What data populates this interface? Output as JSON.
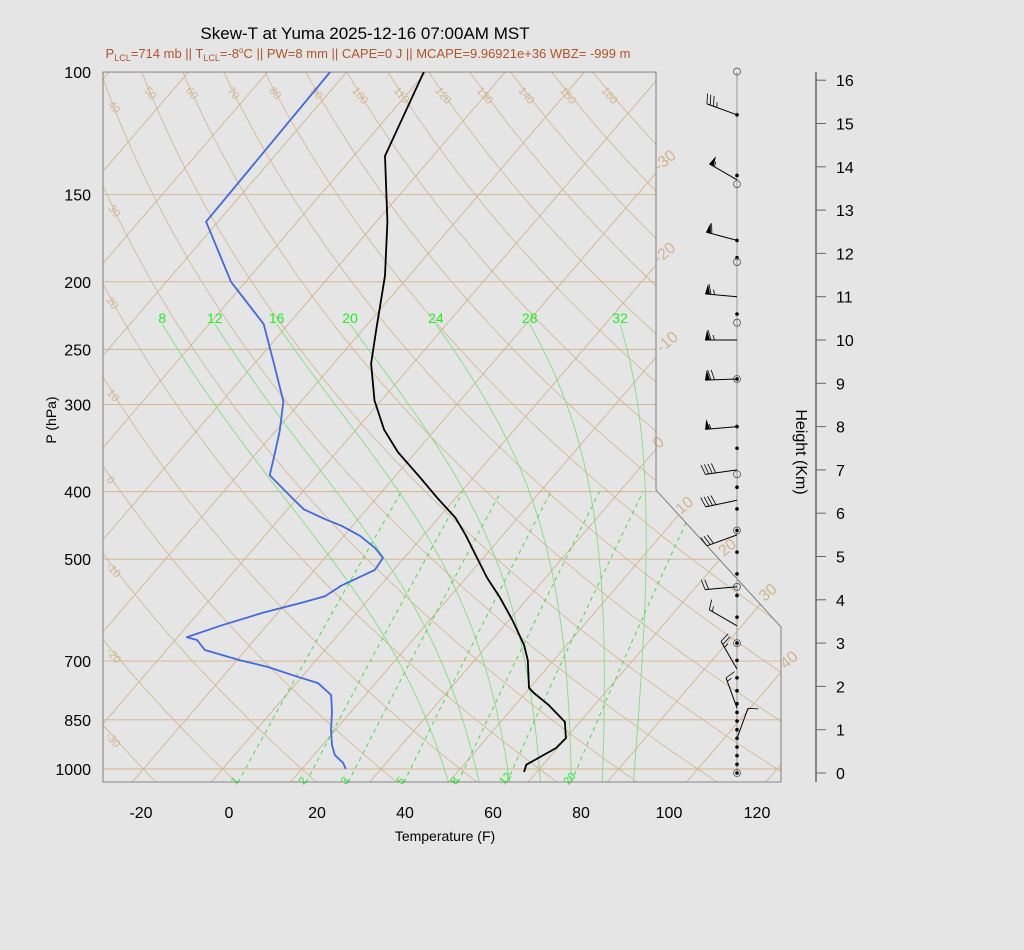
{
  "title": "Skew-T at Yuma 2025-12-16 07:00AM MST",
  "subtitle": {
    "p_lcl_label": "P",
    "p_lcl_sub": "LCL",
    "p_lcl_value": "=714 mb || T",
    "t_lcl_sub": "LCL",
    "t_lcl_value": "=-8",
    "degree": "o",
    "rest": "C || PW=8 mm || CAPE=0 J || MCAPE=9.96921e+36 WBZ= -999 m"
  },
  "colors": {
    "title": "#000000",
    "subtitle": "#b0552a",
    "temperature": "#000000",
    "dewpoint": "#4169e1",
    "isotherm": "#d2b48c",
    "dry_adiabat": "#d2b48c",
    "moist_adiabat": "#7ee07e",
    "mixing_ratio": "#33dd33",
    "green_label": "#22ee22",
    "background": "#e5e5e5"
  },
  "chart_data": {
    "type": "line",
    "subtype": "skew-t log-p",
    "xlabel": "Temperature (F)",
    "ylabel": "P (hPa)",
    "y2label": "Height (Km)",
    "y_scale": "log",
    "ylim": [
      1043,
      100
    ],
    "xlim_at_bottom": [
      -28,
      125
    ],
    "x_ticks": [
      "-20",
      "0",
      "20",
      "40",
      "60",
      "80",
      "100",
      "120"
    ],
    "x_tick_values": [
      -20,
      0,
      20,
      40,
      60,
      80,
      100,
      120
    ],
    "y_ticks": [
      "100",
      "150",
      "200",
      "250",
      "300",
      "400",
      "500",
      "700",
      "850",
      "1000"
    ],
    "y_tick_values": [
      100,
      150,
      200,
      250,
      300,
      400,
      500,
      700,
      850,
      1000
    ],
    "height_ticks": [
      "0",
      "1",
      "2",
      "3",
      "4",
      "5",
      "6",
      "7",
      "8",
      "9",
      "10",
      "11",
      "12",
      "13",
      "14",
      "15",
      "16"
    ],
    "series": [
      {
        "key": "temperature",
        "p": [
          1010,
          986,
          961,
          933,
          903,
          856,
          809,
          778,
          765,
          698,
          664,
          611,
          568,
          532,
          498,
          462,
          436,
          409,
          382,
          351,
          326,
          296,
          262,
          234,
          196,
          164,
          132,
          100
        ],
        "t_f": [
          65.1,
          64.2,
          65.8,
          67.7,
          68.0,
          64.6,
          57.5,
          51.9,
          49.8,
          44.1,
          40.3,
          32.7,
          25.6,
          18.8,
          12.6,
          5.6,
          -0.2,
          -8.0,
          -16.0,
          -26.1,
          -33.6,
          -41.5,
          -49.5,
          -55.0,
          -63.5,
          -73.5,
          -86.9,
          -94.5
        ]
      },
      {
        "key": "dewpoint",
        "p": [
          1000,
          980,
          955,
          924,
          879,
          828,
          783,
          753,
          736,
          714,
          698,
          675,
          653,
          647,
          622,
          597,
          578,
          565,
          545,
          530,
          518,
          498,
          482,
          463,
          448,
          438,
          424,
          409,
          379,
          351,
          328,
          297,
          265,
          230,
          200,
          164,
          100
        ],
        "t_f": [
          24.0,
          22.2,
          18.8,
          16.2,
          13.0,
          9.7,
          6.2,
          0.9,
          -5.5,
          -13.6,
          -21.3,
          -31.3,
          -35.0,
          -37.9,
          -32.3,
          -25.5,
          -18.8,
          -14.5,
          -12.8,
          -10.3,
          -8.3,
          -8.8,
          -12.5,
          -18.3,
          -24.4,
          -29.6,
          -36.3,
          -41.0,
          -50.7,
          -54.0,
          -57.0,
          -62.0,
          -70.7,
          -81.6,
          -97.3,
          -114.7,
          -115.8
        ]
      }
    ],
    "isotherms_c": [
      -110,
      -100,
      -90,
      -80,
      -70,
      -60,
      -50,
      -40,
      -30,
      -20,
      -10,
      0,
      10,
      20,
      30,
      40,
      50
    ],
    "isotherm_labels": {
      "-30": "-30",
      "-20": "-20",
      "-10": "-10",
      "0": "0",
      "10": "10",
      "20": "20",
      "30": "30",
      "40": "40"
    },
    "dry_adiabats_c": [
      -30,
      -20,
      -10,
      0,
      10,
      20,
      30,
      40,
      50,
      60,
      70,
      80,
      90,
      100,
      110,
      120,
      130,
      140,
      150,
      160
    ],
    "dry_adiabat_labels": [
      "-30",
      "-20",
      "-10",
      "0",
      "10",
      "20",
      "30",
      "40",
      "50",
      "60",
      "70",
      "80",
      "90",
      "100",
      "110",
      "120",
      "130",
      "140",
      "150",
      "160"
    ],
    "moist_adiabats_c": [
      8,
      12,
      16,
      20,
      24,
      28,
      32
    ],
    "moist_adiabat_labels": [
      "8",
      "12",
      "16",
      "20",
      "24",
      "28",
      "32"
    ],
    "mixing_ratios_gkg": [
      1,
      2,
      3,
      5,
      8,
      12,
      20
    ],
    "mixing_ratio_labels": [
      "1",
      "2",
      "3",
      "5",
      "8",
      "12",
      "20"
    ],
    "winds": [
      {
        "height_km": 15.2,
        "dir_deg": 290,
        "speed_kt": 35
      },
      {
        "height_km": 13.7,
        "dir_deg": 300,
        "speed_kt": 55
      },
      {
        "height_km": 12.3,
        "dir_deg": 285,
        "speed_kt": 60
      },
      {
        "height_km": 11.0,
        "dir_deg": 275,
        "speed_kt": 65
      },
      {
        "height_km": 10.0,
        "dir_deg": 270,
        "speed_kt": 65
      },
      {
        "height_km": 9.1,
        "dir_deg": 268,
        "speed_kt": 70
      },
      {
        "height_km": 8.0,
        "dir_deg": 265,
        "speed_kt": 55
      },
      {
        "height_km": 7.0,
        "dir_deg": 262,
        "speed_kt": 40
      },
      {
        "height_km": 6.3,
        "dir_deg": 258,
        "speed_kt": 40
      },
      {
        "height_km": 5.5,
        "dir_deg": 250,
        "speed_kt": 30
      },
      {
        "height_km": 4.3,
        "dir_deg": 265,
        "speed_kt": 20
      },
      {
        "height_km": 3.4,
        "dir_deg": 300,
        "speed_kt": 15
      },
      {
        "height_km": 2.4,
        "dir_deg": 330,
        "speed_kt": 25
      },
      {
        "height_km": 1.5,
        "dir_deg": 340,
        "speed_kt": 15
      },
      {
        "height_km": 0.8,
        "dir_deg": 20,
        "speed_kt": 10
      }
    ],
    "wind_dots_km": [
      0.0,
      0.2,
      0.4,
      0.6,
      0.8,
      1.0,
      1.2,
      1.4,
      1.6,
      1.9,
      2.2,
      2.6,
      3.0,
      3.6,
      4.1,
      4.6,
      5.1,
      5.6,
      6.1,
      6.6,
      7.5,
      8.0,
      9.1,
      10.6,
      11.9,
      12.3,
      13.8,
      15.2
    ],
    "wind_circles_km": [
      16.2,
      13.6,
      11.8,
      10.4,
      9.1,
      6.9,
      5.6,
      4.3,
      3.0,
      0.0
    ]
  }
}
